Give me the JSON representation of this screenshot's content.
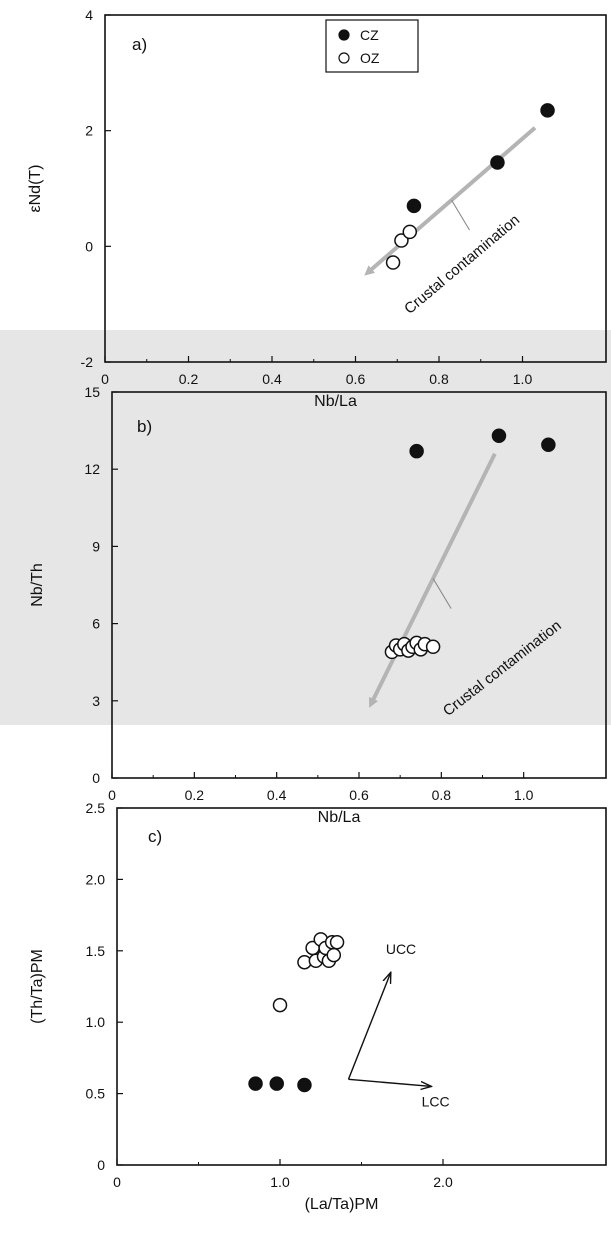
{
  "colors": {
    "filled": "#111111",
    "open_fill": "#ffffff",
    "arrow": "#b4b4b4",
    "band": "#e6e6e6"
  },
  "chart_data": [
    {
      "type": "scatter",
      "panel_label": "a)",
      "xlabel": "Nb/La",
      "ylabel": "εNd(T)",
      "xlim": [
        0,
        1.2
      ],
      "ylim": [
        -2,
        4
      ],
      "xticks": [
        0,
        0.2,
        0.4,
        0.6,
        0.8,
        1.0
      ],
      "xtick_labels": [
        "0",
        "0.2",
        "0.4",
        "0.6",
        "0.8",
        "1.0"
      ],
      "yticks": [
        -2,
        0,
        2,
        4
      ],
      "ytick_labels": [
        "-2",
        "0",
        "2",
        "4"
      ],
      "legend": {
        "placement": "top-center",
        "entries": [
          "CZ",
          "OZ"
        ]
      },
      "series": [
        {
          "name": "CZ",
          "marker": "filled-circle",
          "points": [
            [
              0.74,
              0.7
            ],
            [
              0.94,
              1.45
            ],
            [
              1.06,
              2.35
            ]
          ]
        },
        {
          "name": "OZ",
          "marker": "open-circle",
          "points": [
            [
              0.69,
              -0.28
            ],
            [
              0.71,
              0.1
            ],
            [
              0.73,
              0.25
            ]
          ]
        }
      ],
      "annotation": {
        "text": "Crustal contamination",
        "arrow_from": [
          1.03,
          2.05
        ],
        "arrow_to": [
          0.63,
          -0.45
        ]
      }
    },
    {
      "type": "scatter",
      "panel_label": "b)",
      "xlabel": "Nb/La",
      "ylabel": "Nb/Th",
      "xlim": [
        0,
        1.2
      ],
      "ylim": [
        0,
        15
      ],
      "xticks": [
        0,
        0.2,
        0.4,
        0.6,
        0.8,
        1.0
      ],
      "xtick_labels": [
        "0",
        "0.2",
        "0.4",
        "0.6",
        "0.8",
        "1.0"
      ],
      "yticks": [
        0,
        3,
        6,
        9,
        12,
        15
      ],
      "ytick_labels": [
        "0",
        "3",
        "6",
        "9",
        "12",
        "15"
      ],
      "series": [
        {
          "name": "CZ",
          "marker": "filled-circle",
          "points": [
            [
              0.74,
              12.7
            ],
            [
              0.94,
              13.3
            ],
            [
              1.06,
              12.95
            ]
          ]
        },
        {
          "name": "OZ",
          "marker": "open-circle",
          "points": [
            [
              0.68,
              4.9
            ],
            [
              0.69,
              5.15
            ],
            [
              0.7,
              5.0
            ],
            [
              0.71,
              5.2
            ],
            [
              0.72,
              4.95
            ],
            [
              0.73,
              5.1
            ],
            [
              0.74,
              5.25
            ],
            [
              0.75,
              5.0
            ],
            [
              0.76,
              5.2
            ],
            [
              0.78,
              5.1
            ]
          ]
        }
      ],
      "annotation": {
        "text": "Crustal contamination",
        "arrow_from": [
          0.93,
          12.6
        ],
        "arrow_to": [
          0.63,
          2.9
        ]
      }
    },
    {
      "type": "scatter",
      "panel_label": "c)",
      "xlabel": "(La/Ta)PM",
      "ylabel": "(Th/Ta)PM",
      "xlim": [
        0,
        3.0
      ],
      "ylim": [
        0,
        2.5
      ],
      "xticks": [
        0,
        1.0,
        2.0
      ],
      "xtick_labels": [
        "0",
        "1.0",
        "2.0"
      ],
      "yticks": [
        0,
        0.5,
        1.0,
        1.5,
        2.0,
        2.5
      ],
      "ytick_labels": [
        "0",
        "0.5",
        "1.0",
        "1.5",
        "2.0",
        "2.5"
      ],
      "series": [
        {
          "name": "CZ",
          "marker": "filled-circle",
          "points": [
            [
              0.85,
              0.57
            ],
            [
              0.98,
              0.57
            ],
            [
              1.15,
              0.56
            ]
          ]
        },
        {
          "name": "OZ",
          "marker": "open-circle",
          "points": [
            [
              1.0,
              1.12
            ],
            [
              1.15,
              1.42
            ],
            [
              1.2,
              1.52
            ],
            [
              1.22,
              1.43
            ],
            [
              1.25,
              1.58
            ],
            [
              1.27,
              1.46
            ],
            [
              1.28,
              1.52
            ],
            [
              1.3,
              1.43
            ],
            [
              1.32,
              1.56
            ],
            [
              1.33,
              1.47
            ],
            [
              1.35,
              1.56
            ]
          ]
        }
      ],
      "vectors": [
        {
          "label": "UCC",
          "from": [
            1.42,
            0.6
          ],
          "to": [
            1.68,
            1.35
          ]
        },
        {
          "label": "LCC",
          "from": [
            1.42,
            0.6
          ],
          "to": [
            1.93,
            0.55
          ]
        }
      ]
    }
  ]
}
